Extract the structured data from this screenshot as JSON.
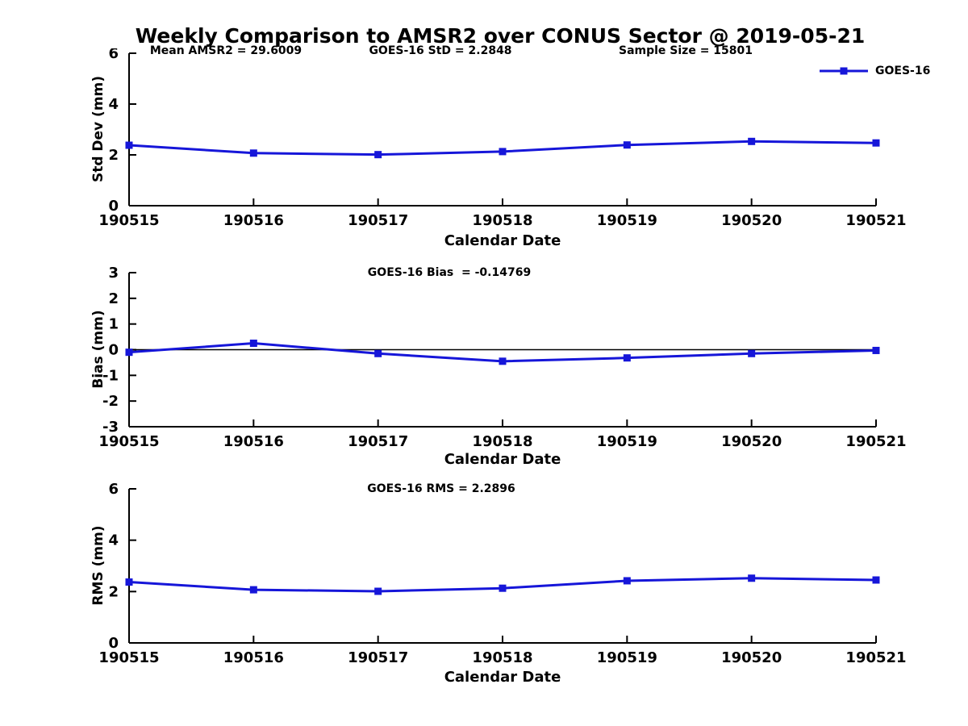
{
  "title": "Weekly Comparison to AMSR2 over CONUS Sector @ 2019-05-21",
  "annotations": {
    "mean_amsr2": "Mean AMSR2 = 29.6009",
    "goes16_std": "GOES-16 StD = 2.2848",
    "sample_size": "Sample Size = 15801"
  },
  "legend": {
    "label": "GOES-16",
    "marker": "square",
    "position": "top-right"
  },
  "colors": {
    "line": "#1616d9",
    "axis": "#000000",
    "text": "#000000",
    "background": "#ffffff"
  },
  "chart_data": [
    {
      "type": "line",
      "title": "",
      "ylabel": "Std Dev (mm)",
      "xlabel": "Calendar Date",
      "ylim": [
        0,
        6
      ],
      "yticks": [
        0,
        2,
        4,
        6
      ],
      "grid": false,
      "zero_line": false,
      "x": [
        "190515",
        "190516",
        "190517",
        "190518",
        "190519",
        "190520",
        "190521"
      ],
      "series": [
        {
          "name": "GOES-16",
          "values": [
            2.38,
            2.07,
            2.01,
            2.13,
            2.39,
            2.53,
            2.47
          ]
        }
      ]
    },
    {
      "type": "line",
      "title": "GOES-16 Bias  = -0.14769",
      "ylabel": "Bias (mm)",
      "xlabel": "Calendar Date",
      "ylim": [
        -3,
        3
      ],
      "yticks": [
        -3,
        -2,
        -1,
        0,
        1,
        2,
        3
      ],
      "grid": false,
      "zero_line": true,
      "x": [
        "190515",
        "190516",
        "190517",
        "190518",
        "190519",
        "190520",
        "190521"
      ],
      "series": [
        {
          "name": "GOES-16",
          "values": [
            -0.1,
            0.25,
            -0.15,
            -0.45,
            -0.32,
            -0.15,
            -0.03
          ]
        }
      ]
    },
    {
      "type": "line",
      "title": "GOES-16 RMS = 2.2896",
      "ylabel": "RMS (mm)",
      "xlabel": "Calendar Date",
      "ylim": [
        0,
        6
      ],
      "yticks": [
        0,
        2,
        4,
        6
      ],
      "grid": false,
      "zero_line": false,
      "x": [
        "190515",
        "190516",
        "190517",
        "190518",
        "190519",
        "190520",
        "190521"
      ],
      "series": [
        {
          "name": "GOES-16",
          "values": [
            2.37,
            2.07,
            2.01,
            2.13,
            2.42,
            2.52,
            2.45
          ]
        }
      ]
    }
  ]
}
